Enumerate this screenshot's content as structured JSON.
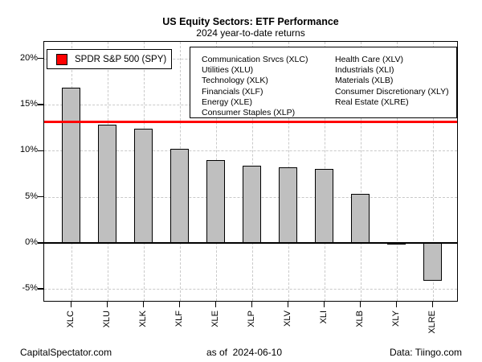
{
  "chart_data": {
    "type": "bar",
    "title": "US Equity Sectors: ETF Performance",
    "subtitle": "2024 year-to-date returns",
    "categories": [
      "XLC",
      "XLU",
      "XLK",
      "XLF",
      "XLE",
      "XLP",
      "XLV",
      "XLI",
      "XLB",
      "XLY",
      "XLRE"
    ],
    "values": [
      16.8,
      12.8,
      12.4,
      10.2,
      9.0,
      8.4,
      8.2,
      8.0,
      5.3,
      -0.1,
      -4.1
    ],
    "xlabel": "",
    "ylabel": "",
    "ylim": [
      -6.2,
      21.8
    ],
    "yticks": [
      20,
      15,
      10,
      5,
      0,
      -5
    ],
    "ytick_labels": [
      "20%",
      "15%",
      "10%",
      "5%",
      "0%",
      "-5%"
    ],
    "grid": true,
    "bar_color": "#bfbfbf",
    "bar_border_color": "#000000",
    "reference_line": {
      "label": "SPDR S&P 500 (SPY)",
      "value": 13.1,
      "color": "#ff0000"
    },
    "legend_position": "top"
  },
  "spy_legend": {
    "label": "SPDR S&P 500 (SPY)",
    "color": "#ff0000"
  },
  "sector_legend": {
    "col1": [
      "Communication Srvcs (XLC)",
      "Utilities (XLU)",
      "Technology (XLK)",
      "Financials (XLF)",
      "Energy (XLE)",
      "Consumer Staples (XLP)"
    ],
    "col2": [
      "Health Care (XLV)",
      "Industrials (XLI)",
      "Materials (XLB)",
      "Consumer Discretionary (XLY)",
      "Real Estate (XLRE)"
    ]
  },
  "footer": {
    "left": "CapitalSpectator.com",
    "center": "as of  2024-06-10",
    "right": "Data: Tiingo.com"
  }
}
